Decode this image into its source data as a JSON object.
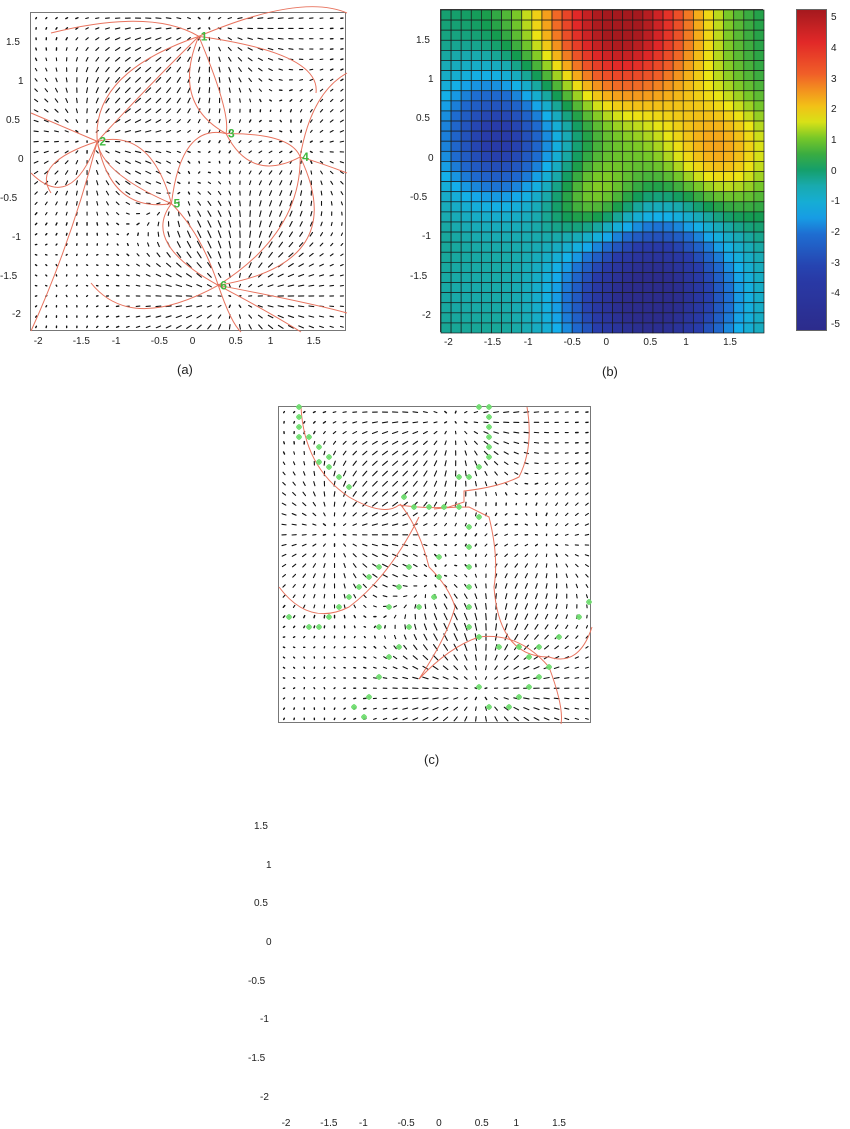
{
  "figure": {
    "panels": [
      {
        "id": "a",
        "label": "(a)"
      },
      {
        "id": "b",
        "label": "(b)"
      },
      {
        "id": "c",
        "label": "(c)"
      }
    ]
  },
  "colors": {
    "streamline": "#e8735e",
    "critical_point_label": "#3fb83f",
    "arrow": "#111111",
    "marker": "#6fdc6f",
    "axes_border": "#777777"
  },
  "chart_data": [
    {
      "panel": "a",
      "type": "scatter",
      "title": "",
      "subtype": "vector field with streamlines",
      "xlabel": "",
      "ylabel": "",
      "xlim": [
        -2.15,
        1.9
      ],
      "ylim": [
        -2.2,
        1.9
      ],
      "xticks": [
        "-2",
        "-1.5",
        "-1",
        "-0.5",
        "0",
        "0.5",
        "1",
        "1.5"
      ],
      "yticks": [
        "1.5",
        "1",
        "0.5",
        "0",
        "-0.5",
        "-1",
        "-1.5",
        "-2"
      ],
      "critical_points": [
        {
          "label": "1",
          "x": 0.0,
          "y": 1.6
        },
        {
          "label": "2",
          "x": -1.3,
          "y": 0.25
        },
        {
          "label": "3",
          "x": 0.35,
          "y": 0.35
        },
        {
          "label": "4",
          "x": 1.3,
          "y": 0.05
        },
        {
          "label": "5",
          "x": -0.35,
          "y": -0.55
        },
        {
          "label": "6",
          "x": 0.25,
          "y": -1.6
        }
      ],
      "grid": false
    },
    {
      "panel": "b",
      "type": "heatmap",
      "title": "",
      "xlabel": "",
      "ylabel": "",
      "xlim": [
        -2.15,
        1.9
      ],
      "ylim": [
        -2.2,
        1.9
      ],
      "xticks": [
        "-2",
        "-1.5",
        "-1",
        "-0.5",
        "0",
        "0.5",
        "1",
        "1.5"
      ],
      "yticks": [
        "1.5",
        "1",
        "0.5",
        "0",
        "-0.5",
        "-1",
        "-1.5",
        "-2"
      ],
      "grid_size": [
        32,
        32
      ],
      "colorbar": {
        "ticks": [
          "5",
          "4",
          "3",
          "2",
          "1",
          "0",
          "-1",
          "-2",
          "-3",
          "-4",
          "-5"
        ],
        "range": [
          -5.2,
          5.3
        ],
        "colormap": "jet"
      },
      "features": [
        {
          "kind": "max",
          "x": 0.1,
          "y": 1.65,
          "value": 5.2
        },
        {
          "kind": "min",
          "x": 0.4,
          "y": -1.65,
          "value": -5.0
        },
        {
          "kind": "min",
          "x": -1.35,
          "y": 0.3,
          "value": -3.0
        },
        {
          "kind": "local_max",
          "x": 1.3,
          "y": 0.1,
          "value": 2.6
        },
        {
          "kind": "local_max",
          "x": -0.2,
          "y": -0.5,
          "value": 2.0
        }
      ],
      "grid": true
    },
    {
      "panel": "c",
      "type": "scatter",
      "title": "",
      "subtype": "vector field with region boundaries and marked points",
      "xlabel": "",
      "ylabel": "",
      "xlim": [
        -2.15,
        1.9
      ],
      "ylim": [
        -2.2,
        1.9
      ],
      "xticks": [
        "-2",
        "-1.5",
        "-1",
        "-0.5",
        "0",
        "0.5",
        "1",
        "1.5"
      ],
      "yticks": [
        "1.5",
        "1",
        "0.5",
        "0",
        "-0.5",
        "-1",
        "-1.5",
        "-2"
      ],
      "grid": false
    }
  ]
}
